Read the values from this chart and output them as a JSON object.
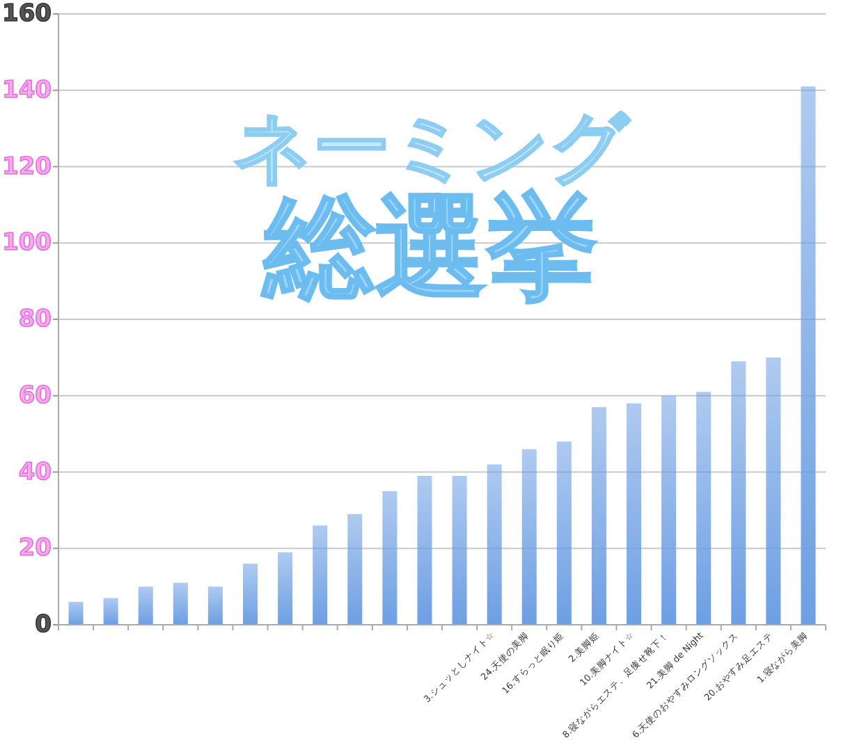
{
  "chart_data": {
    "type": "bar",
    "title": "ネーミング",
    "subtitle": "総選挙",
    "categories": [
      null,
      null,
      null,
      null,
      null,
      null,
      null,
      null,
      null,
      null,
      null,
      null,
      "3.シュッとしナイト☆",
      "24.天使の美脚",
      "16.すらっと眠り姫",
      "2.美脚姫",
      "10.美脚ナイト☆",
      "8.寝ながらエステ、足痩せ靴下！",
      "21.美脚 de Night",
      "6.天使のおやすみロングソックス",
      "20.おやすみ足エステ",
      "1.寝ながら美脚"
    ],
    "values": [
      6,
      7,
      10,
      11,
      10,
      16,
      19,
      26,
      29,
      35,
      39,
      39,
      42,
      46,
      48,
      57,
      58,
      60,
      61,
      69,
      70,
      141
    ],
    "color": "#6d9fe3",
    "ylim": [
      0,
      160
    ],
    "yticks": [
      0,
      20,
      40,
      60,
      80,
      100,
      120,
      140,
      160
    ],
    "grid": "y"
  }
}
